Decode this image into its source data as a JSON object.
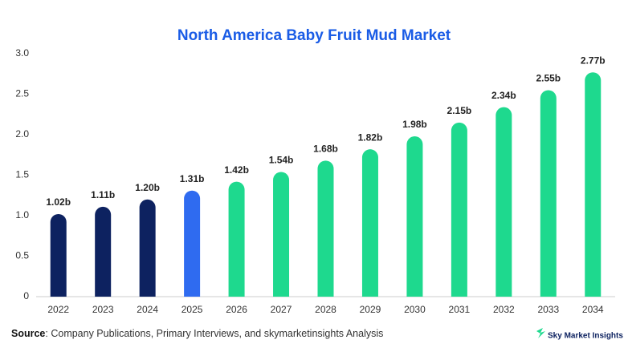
{
  "chart_data": {
    "type": "bar",
    "title": "North America Baby Fruit Mud Market",
    "categories": [
      "2022",
      "2023",
      "2024",
      "2025",
      "2026",
      "2027",
      "2028",
      "2029",
      "2030",
      "2031",
      "2032",
      "2033",
      "2034"
    ],
    "values": [
      1.02,
      1.11,
      1.2,
      1.31,
      1.42,
      1.54,
      1.68,
      1.82,
      1.98,
      2.15,
      2.34,
      2.55,
      2.77
    ],
    "value_labels": [
      "1.02b",
      "1.11b",
      "1.20b",
      "1.31b",
      "1.42b",
      "1.54b",
      "1.68b",
      "1.82b",
      "1.98b",
      "2.15b",
      "2.34b",
      "2.55b",
      "2.77b"
    ],
    "colors": [
      "#0d2260",
      "#0d2260",
      "#0d2260",
      "#2f6bf0",
      "#1ed98e",
      "#1ed98e",
      "#1ed98e",
      "#1ed98e",
      "#1ed98e",
      "#1ed98e",
      "#1ed98e",
      "#1ed98e",
      "#1ed98e"
    ],
    "ylim": [
      0,
      3
    ],
    "yticks": [
      0,
      0.5,
      {
        "value": 1,
        "label": "1.0"
      },
      1.5,
      {
        "value": 2,
        "label": "2.0"
      },
      2.5,
      {
        "value": 3,
        "label": "3.0"
      }
    ],
    "grid": false
  },
  "footer": {
    "source_label": "Source",
    "source_text": ": Company Publications, Primary Interviews, and skymarketinsights Analysis",
    "logo": "Sky Market Insights"
  }
}
